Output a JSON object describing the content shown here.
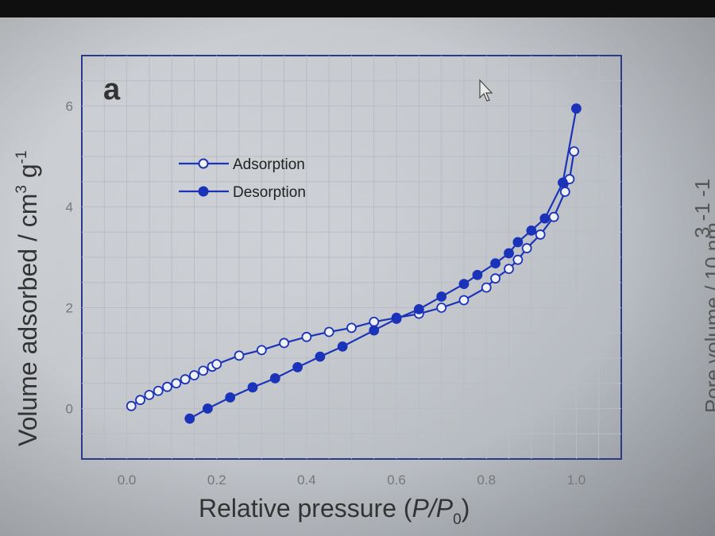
{
  "chart_data": {
    "type": "line",
    "panel_label": "a",
    "xlabel": {
      "main": "Relative pressure (",
      "var": "P/P",
      "sub": "0",
      "close": ")"
    },
    "ylabel": {
      "main": "Volume adsorbed / cm",
      "sup1": "3",
      "mid": " g",
      "sup2": "-1"
    },
    "xlim": [
      -0.1,
      1.1
    ],
    "ylim": [
      -1,
      7
    ],
    "xticks": [
      "0.0",
      "0.2",
      "0.4",
      "0.6",
      "0.8",
      "1.0"
    ],
    "xtick_values": [
      0,
      0.2,
      0.4,
      0.6,
      0.8,
      1.0
    ],
    "yticks": [
      "0",
      "2",
      "4",
      "6"
    ],
    "ytick_values": [
      0,
      2,
      4,
      6
    ],
    "grid": true,
    "legend_position": "top-left",
    "series": [
      {
        "name": "Adsorption",
        "marker": "open-circle",
        "color": "#1b33b8",
        "points": [
          [
            0.01,
            0.05
          ],
          [
            0.03,
            0.17
          ],
          [
            0.05,
            0.27
          ],
          [
            0.07,
            0.35
          ],
          [
            0.09,
            0.43
          ],
          [
            0.11,
            0.5
          ],
          [
            0.13,
            0.58
          ],
          [
            0.15,
            0.66
          ],
          [
            0.17,
            0.75
          ],
          [
            0.19,
            0.83
          ],
          [
            0.2,
            0.88
          ],
          [
            0.25,
            1.05
          ],
          [
            0.3,
            1.16
          ],
          [
            0.35,
            1.3
          ],
          [
            0.4,
            1.42
          ],
          [
            0.45,
            1.52
          ],
          [
            0.5,
            1.6
          ],
          [
            0.55,
            1.72
          ],
          [
            0.6,
            1.8
          ],
          [
            0.65,
            1.88
          ],
          [
            0.7,
            2.0
          ],
          [
            0.75,
            2.15
          ],
          [
            0.8,
            2.4
          ],
          [
            0.82,
            2.58
          ],
          [
            0.85,
            2.77
          ],
          [
            0.87,
            2.95
          ],
          [
            0.89,
            3.18
          ],
          [
            0.92,
            3.45
          ],
          [
            0.95,
            3.8
          ],
          [
            0.975,
            4.3
          ],
          [
            0.985,
            4.55
          ],
          [
            0.995,
            5.1
          ]
        ]
      },
      {
        "name": "Desorption",
        "marker": "filled-circle",
        "color": "#1b33b8",
        "points": [
          [
            0.14,
            -0.2
          ],
          [
            0.18,
            0.0
          ],
          [
            0.23,
            0.22
          ],
          [
            0.28,
            0.42
          ],
          [
            0.33,
            0.6
          ],
          [
            0.38,
            0.82
          ],
          [
            0.43,
            1.03
          ],
          [
            0.48,
            1.23
          ],
          [
            0.55,
            1.55
          ],
          [
            0.6,
            1.78
          ],
          [
            0.65,
            1.97
          ],
          [
            0.7,
            2.22
          ],
          [
            0.75,
            2.47
          ],
          [
            0.78,
            2.65
          ],
          [
            0.82,
            2.88
          ],
          [
            0.85,
            3.08
          ],
          [
            0.87,
            3.3
          ],
          [
            0.9,
            3.53
          ],
          [
            0.93,
            3.77
          ],
          [
            0.97,
            4.48
          ],
          [
            1.0,
            5.95
          ]
        ]
      }
    ]
  },
  "right_panel_fragment": {
    "text_a": "3  -1  -1",
    "text_b": "Pore volume / 10 nm"
  }
}
